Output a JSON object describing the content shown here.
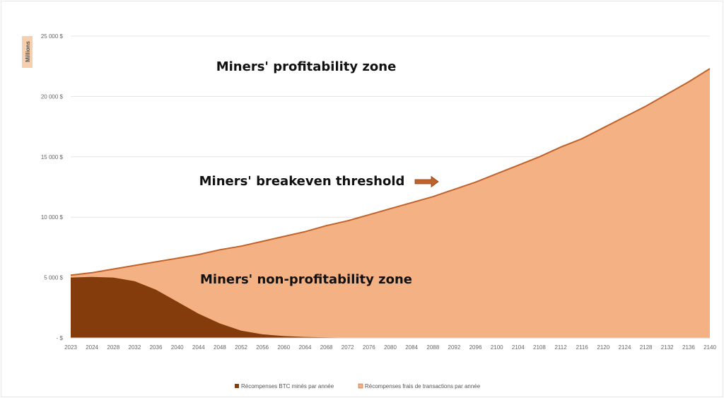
{
  "chart_data": {
    "type": "area",
    "title": "",
    "xlabel": "",
    "ylabel": "",
    "unit_label": "Millions",
    "ylim": [
      0,
      25000
    ],
    "y_ticks": [
      {
        "value": 0,
        "label": "-   $"
      },
      {
        "value": 5000,
        "label": "5 000  $"
      },
      {
        "value": 10000,
        "label": "10 000  $"
      },
      {
        "value": 15000,
        "label": "15 000  $"
      },
      {
        "value": 20000,
        "label": "20 000  $"
      },
      {
        "value": 25000,
        "label": "25 000  $"
      }
    ],
    "categories": [
      "2023",
      "2024",
      "2028",
      "2032",
      "2036",
      "2040",
      "2044",
      "2048",
      "2052",
      "2056",
      "2060",
      "2064",
      "2068",
      "2072",
      "2076",
      "2080",
      "2084",
      "2088",
      "2092",
      "2096",
      "2100",
      "2104",
      "2108",
      "2112",
      "2116",
      "2120",
      "2124",
      "2128",
      "2132",
      "2136",
      "2140"
    ],
    "series": [
      {
        "name": "Récompenses BTC minés par année",
        "color": "#843c0c",
        "values": [
          5000,
          5050,
          5000,
          4700,
          4000,
          3000,
          2000,
          1200,
          600,
          300,
          150,
          80,
          40,
          20,
          10,
          5,
          3,
          2,
          1,
          1,
          0,
          0,
          0,
          0,
          0,
          0,
          0,
          0,
          0,
          0,
          0
        ]
      },
      {
        "name": "Récompenses frais de transactions par année",
        "color": "#f4b183",
        "line_color": "#c0622a",
        "values": [
          5200,
          5400,
          5700,
          6000,
          6300,
          6600,
          6900,
          7300,
          7600,
          8000,
          8400,
          8800,
          9300,
          9700,
          10200,
          10700,
          11200,
          11700,
          12300,
          12900,
          13600,
          14300,
          15000,
          15800,
          16500,
          17400,
          18300,
          19200,
          20200,
          21200,
          22300
        ]
      }
    ],
    "annotations": [
      {
        "id": "profitability",
        "text": "Miners' profitability zone"
      },
      {
        "id": "breakeven",
        "text": "Miners' breakeven threshold",
        "arrow": true
      },
      {
        "id": "non_profitability",
        "text": "Miners' non-profitability zone"
      }
    ],
    "legend_position": "bottom-center",
    "grid": true
  }
}
